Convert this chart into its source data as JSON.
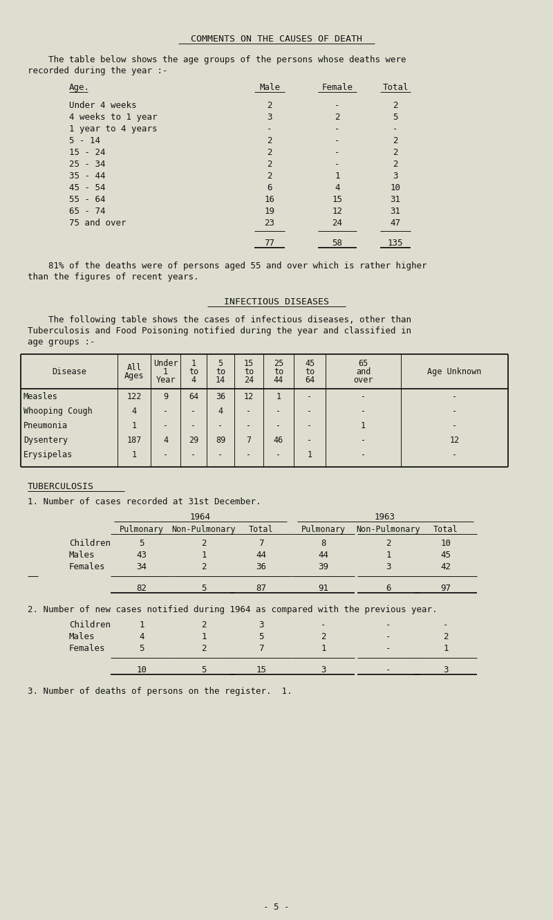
{
  "bg_color": "#deded0",
  "text_color": "#111111",
  "page_title": "COMMENTS ON THE CAUSES OF DEATH",
  "para1_l1": "    The table below shows the age groups of the persons whose deaths were",
  "para1_l2": "recorded during the year :-",
  "death_table_headers": [
    "Age.",
    "Male",
    "Female",
    "Total"
  ],
  "death_table_rows": [
    [
      "Under 4 weeks",
      "2",
      "-",
      "2"
    ],
    [
      "4 weeks to 1 year",
      "3",
      "2",
      "5"
    ],
    [
      "1 year to 4 years",
      "-",
      "-",
      "-"
    ],
    [
      "5 - 14",
      "2",
      "-",
      "2"
    ],
    [
      "15 - 24",
      "2",
      "-",
      "2"
    ],
    [
      "25 - 34",
      "2",
      "-",
      "2"
    ],
    [
      "35 - 44",
      "2",
      "1",
      "3"
    ],
    [
      "45 - 54",
      "6",
      "4",
      "10"
    ],
    [
      "55 - 64",
      "16",
      "15",
      "31"
    ],
    [
      "65 - 74",
      "19",
      "12",
      "31"
    ],
    [
      "75 and over",
      "23",
      "24",
      "47"
    ]
  ],
  "death_table_totals": [
    "77",
    "58",
    "135"
  ],
  "para2_l1": "    81% of the deaths were of persons aged 55 and over which is rather higher",
  "para2_l2": "than the figures of recent years.",
  "section2_title": "INFECTIOUS DISEASES",
  "para3_l1": "    The following table shows the cases of infectious diseases, other than",
  "para3_l2": "Tuberculosis and Food Poisoning notified during the year and classified in",
  "para3_l3": "age groups :-",
  "inf_col_labels": [
    "Disease",
    "All\nAges",
    "Under\n1\nYear",
    "1\nto\n4",
    "5\nto\n14",
    "15\nto\n24",
    "25\nto\n44",
    "45\nto\n64",
    "65\nand\nover",
    "Age Unknown"
  ],
  "inf_table_rows": [
    [
      "Measles",
      "122",
      "9",
      "64",
      "36",
      "12",
      "1",
      "-",
      "-",
      "-"
    ],
    [
      "Whooping Cough",
      "4",
      "-",
      "-",
      "4",
      "-",
      "-",
      "-",
      "-",
      "-"
    ],
    [
      "Pneumonia",
      "1",
      "-",
      "-",
      "-",
      "-",
      "-",
      "-",
      "1",
      "-"
    ],
    [
      "Dysentery",
      "187",
      "4",
      "29",
      "89",
      "7",
      "46",
      "-",
      "-",
      "12"
    ],
    [
      "Erysipelas",
      "1",
      "-",
      "-",
      "-",
      "-",
      "-",
      "1",
      "-",
      "-"
    ]
  ],
  "section3_title": "TUBERCULOSIS",
  "tb_note1": "1. Number of cases recorded at 31st December.",
  "tb_rows1": [
    [
      "Children",
      "5",
      "2",
      "7",
      "8",
      "2",
      "10"
    ],
    [
      "Males",
      "43",
      "1",
      "44",
      "44",
      "1",
      "45"
    ],
    [
      "Females",
      "34",
      "2",
      "36",
      "39",
      "3",
      "42"
    ]
  ],
  "tb_totals1": [
    "82",
    "5",
    "87",
    "91",
    "6",
    "97"
  ],
  "tb_note2": "2. Number of new cases notified during 1964 as compared with the previous year.",
  "tb_rows2": [
    [
      "Children",
      "1",
      "2",
      "3",
      "-",
      "-",
      "-"
    ],
    [
      "Males",
      "4",
      "1",
      "5",
      "2",
      "-",
      "2"
    ],
    [
      "Females",
      "5",
      "2",
      "7",
      "1",
      "-",
      "1"
    ]
  ],
  "tb_totals2": [
    "10",
    "5",
    "15",
    "3",
    "-",
    "3"
  ],
  "tb_note3": "3. Number of deaths of persons on the register.  1.",
  "page_num": "- 5 -"
}
